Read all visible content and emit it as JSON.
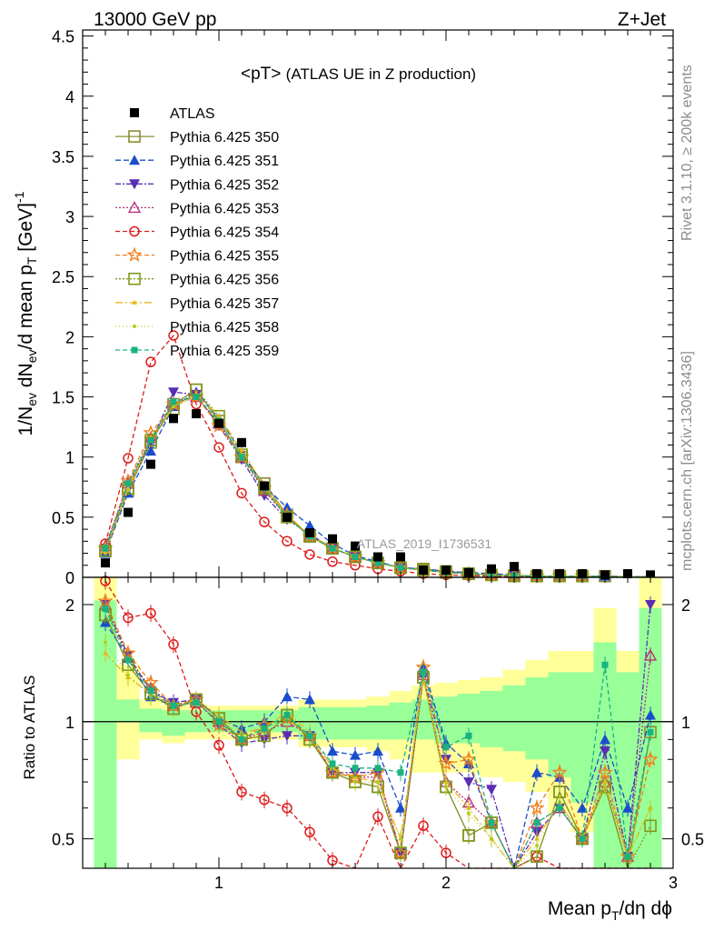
{
  "header": {
    "left": "13000 GeV pp",
    "right": "Z+Jet"
  },
  "side": {
    "rivet": "Rivet 3.1.10, ≥ 200k events",
    "mcplots": "mcplots.cern.ch [arXiv:1306.3436]"
  },
  "chart_data": {
    "type": "line",
    "title": "<pT> (ATLAS UE in Z production)",
    "title_main": "<pT>",
    "title_sub": "(ATLAS UE in Z production)",
    "watermark": "ATLAS_2019_I1736531",
    "xlabel": "Mean p_T/dη dφ",
    "ylabel_main": "1/N_ev dN_ev/d mean p_T [GeV]^-1",
    "ylabel_ratio": "Ratio to ATLAS",
    "xlim": [
      0.4,
      3.0
    ],
    "ylim_main": [
      0,
      4.55
    ],
    "ylim_ratio": [
      0.42,
      2.35
    ],
    "grid": false,
    "legend_position": "top-left",
    "x_ticks": [
      "1",
      "2",
      "3"
    ],
    "y_ticks_main": [
      "0",
      "0.5",
      "1",
      "1.5",
      "2",
      "2.5",
      "3",
      "3.5",
      "4",
      "4.5"
    ],
    "y_ticks_ratio": [
      "0.5",
      "1",
      "2"
    ],
    "x": [
      0.5,
      0.6,
      0.7,
      0.8,
      0.9,
      1.0,
      1.1,
      1.2,
      1.3,
      1.4,
      1.5,
      1.6,
      1.7,
      1.8,
      1.9,
      2.0,
      2.1,
      2.2,
      2.3,
      2.4,
      2.5,
      2.6,
      2.7,
      2.8,
      2.9
    ],
    "data": {
      "name": "ATLAS",
      "values": [
        0.12,
        0.54,
        0.94,
        1.32,
        1.36,
        1.28,
        1.12,
        0.76,
        0.5,
        0.37,
        0.32,
        0.26,
        0.17,
        0.17,
        0.06,
        0.06,
        0.04,
        0.07,
        0.09,
        0.03,
        0.03,
        0.03,
        0.02,
        0.03,
        0.02
      ]
    },
    "series": [
      {
        "name": "Pythia 6.425 350",
        "color": "#8c8c33",
        "dash": "",
        "marker": "square-open",
        "values": [
          0.22,
          0.72,
          1.12,
          1.44,
          1.56,
          1.3,
          1.0,
          0.78,
          0.52,
          0.34,
          0.24,
          0.17,
          0.12,
          0.08,
          0.07,
          0.05,
          0.03,
          0.02,
          0.01,
          0.01,
          0.01,
          0.01,
          0.01,
          0.005,
          0.005
        ]
      },
      {
        "name": "Pythia 6.425 351",
        "color": "#1a4dcc",
        "dash": "6,3",
        "marker": "triangle-up",
        "values": [
          0.2,
          0.7,
          1.05,
          1.42,
          1.54,
          1.32,
          1.04,
          0.76,
          0.58,
          0.43,
          0.28,
          0.18,
          0.13,
          0.08,
          0.07,
          0.05,
          0.04,
          0.03,
          0.02,
          0.01,
          0.01,
          0.01,
          0.01,
          0.005,
          0.005
        ]
      },
      {
        "name": "Pythia 6.425 352",
        "color": "#5a2db3",
        "dash": "6,2,2,2",
        "marker": "triangle-down",
        "values": [
          0.24,
          0.76,
          1.12,
          1.54,
          1.52,
          1.26,
          0.98,
          0.68,
          0.48,
          0.36,
          0.24,
          0.17,
          0.12,
          0.08,
          0.06,
          0.05,
          0.03,
          0.02,
          0.015,
          0.01,
          0.01,
          0.01,
          0.005,
          0.005,
          0.005
        ]
      },
      {
        "name": "Pythia 6.425 353",
        "color": "#b3337a",
        "dash": "2,2",
        "marker": "triangle-up-open",
        "values": [
          0.26,
          0.78,
          1.16,
          1.44,
          1.5,
          1.28,
          1.0,
          0.72,
          0.5,
          0.34,
          0.24,
          0.17,
          0.12,
          0.08,
          0.06,
          0.04,
          0.03,
          0.02,
          0.015,
          0.01,
          0.01,
          0.01,
          0.005,
          0.005,
          0.005
        ]
      },
      {
        "name": "Pythia 6.425 354",
        "color": "#dd1a1a",
        "dash": "5,3",
        "marker": "circle-open",
        "values": [
          0.28,
          0.99,
          1.79,
          2.01,
          1.44,
          1.08,
          0.7,
          0.46,
          0.3,
          0.19,
          0.13,
          0.1,
          0.07,
          0.05,
          0.03,
          0.02,
          0.015,
          0.01,
          0.005,
          0.005,
          0.005,
          0.005,
          0.005,
          0.005,
          0.005
        ]
      },
      {
        "name": "Pythia 6.425 355",
        "color": "#f07f1a",
        "dash": "5,3",
        "marker": "star-open",
        "values": [
          0.24,
          0.8,
          1.2,
          1.44,
          1.5,
          1.26,
          1.0,
          0.74,
          0.52,
          0.34,
          0.24,
          0.17,
          0.12,
          0.08,
          0.06,
          0.04,
          0.03,
          0.02,
          0.015,
          0.01,
          0.01,
          0.01,
          0.005,
          0.005,
          0.005
        ]
      },
      {
        "name": "Pythia 6.425 356",
        "color": "#7f991a",
        "dash": "2,2",
        "marker": "square-open",
        "values": [
          0.22,
          0.74,
          1.14,
          1.4,
          1.56,
          1.34,
          1.02,
          0.74,
          0.5,
          0.34,
          0.24,
          0.17,
          0.12,
          0.08,
          0.06,
          0.04,
          0.03,
          0.02,
          0.015,
          0.01,
          0.01,
          0.01,
          0.005,
          0.005,
          0.005
        ]
      },
      {
        "name": "Pythia 6.425 357",
        "color": "#e6b81a",
        "dash": "8,3,2,3",
        "marker": "tri-small",
        "values": [
          0.22,
          0.74,
          1.16,
          1.42,
          1.52,
          1.34,
          1.06,
          0.76,
          0.52,
          0.35,
          0.25,
          0.17,
          0.12,
          0.08,
          0.06,
          0.04,
          0.03,
          0.02,
          0.015,
          0.01,
          0.01,
          0.01,
          0.005,
          0.005,
          0.005
        ]
      },
      {
        "name": "Pythia 6.425 358",
        "color": "#b3cc1a",
        "dash": "1,3",
        "marker": "dot",
        "values": [
          0.2,
          0.72,
          1.14,
          1.42,
          1.5,
          1.32,
          1.02,
          0.74,
          0.5,
          0.34,
          0.24,
          0.17,
          0.12,
          0.08,
          0.06,
          0.04,
          0.03,
          0.02,
          0.015,
          0.01,
          0.01,
          0.01,
          0.005,
          0.005,
          0.005
        ]
      },
      {
        "name": "Pythia 6.425 359",
        "color": "#1ab380",
        "dash": "5,3",
        "marker": "square-small",
        "values": [
          0.24,
          0.78,
          1.14,
          1.46,
          1.5,
          1.3,
          1.0,
          0.74,
          0.5,
          0.34,
          0.24,
          0.17,
          0.12,
          0.08,
          0.06,
          0.04,
          0.03,
          0.02,
          0.015,
          0.01,
          0.01,
          0.01,
          0.005,
          0.005,
          0.005
        ]
      }
    ],
    "ratio_series": [
      {
        "name": "Pythia 6.425 350",
        "values": [
          1.88,
          1.4,
          1.18,
          1.08,
          1.14,
          1.02,
          0.9,
          0.92,
          1.04,
          0.9,
          0.74,
          0.7,
          0.68,
          0.46,
          1.3,
          0.68,
          0.51,
          0.55,
          0.3,
          0.45,
          0.66,
          0.5,
          0.68,
          0.4,
          0.94
        ]
      },
      {
        "name": "Pythia 6.425 351",
        "values": [
          1.8,
          1.46,
          1.16,
          1.1,
          1.14,
          1.02,
          0.96,
          1.0,
          1.16,
          1.14,
          0.84,
          0.82,
          0.84,
          0.6,
          1.38,
          0.88,
          0.78,
          0.55,
          0.32,
          0.74,
          0.72,
          0.6,
          0.9,
          0.6,
          1.04
        ]
      },
      {
        "name": "Pythia 6.425 352",
        "values": [
          2.0,
          1.48,
          1.2,
          1.12,
          1.14,
          0.98,
          0.88,
          0.9,
          0.92,
          0.92,
          0.74,
          0.74,
          0.74,
          0.46,
          1.3,
          0.8,
          0.7,
          0.67,
          0.3,
          0.52,
          0.6,
          0.5,
          0.84,
          0.45,
          2.0
        ]
      },
      {
        "name": "Pythia 6.425 353",
        "values": [
          2.0,
          1.46,
          1.22,
          1.1,
          1.12,
          1.0,
          0.9,
          0.94,
          1.0,
          0.92,
          0.74,
          0.72,
          0.72,
          0.46,
          1.32,
          0.7,
          0.62,
          0.55,
          0.3,
          0.55,
          0.6,
          0.5,
          0.7,
          0.45,
          1.48
        ]
      },
      {
        "name": "Pythia 6.425 354",
        "values": [
          2.3,
          1.85,
          1.9,
          1.58,
          1.06,
          0.87,
          0.66,
          0.63,
          0.6,
          0.52,
          0.44,
          0.42,
          0.57,
          0.3,
          0.54,
          0.46,
          0.4,
          0.35,
          0.32,
          0.45,
          0.36,
          0.4,
          0.38,
          0.4,
          0.36
        ]
      },
      {
        "name": "Pythia 6.425 355",
        "values": [
          2.04,
          1.5,
          1.26,
          1.1,
          1.14,
          0.98,
          0.9,
          0.98,
          1.02,
          0.92,
          0.74,
          0.72,
          0.74,
          0.46,
          1.38,
          0.78,
          0.8,
          0.55,
          0.3,
          0.6,
          0.74,
          0.5,
          0.74,
          0.45,
          0.8
        ]
      },
      {
        "name": "Pythia 6.425 356",
        "values": [
          1.88,
          1.4,
          1.18,
          1.08,
          1.14,
          1.02,
          0.9,
          0.92,
          1.04,
          0.9,
          0.74,
          0.7,
          0.68,
          0.46,
          1.3,
          0.68,
          0.51,
          0.55,
          0.3,
          0.45,
          0.66,
          0.5,
          0.68,
          0.4,
          0.54
        ]
      },
      {
        "name": "Pythia 6.425 357",
        "values": [
          1.5,
          1.3,
          1.18,
          1.1,
          1.14,
          1.04,
          0.94,
          0.96,
          1.06,
          0.94,
          0.76,
          0.72,
          0.7,
          0.5,
          1.3,
          0.7,
          0.6,
          0.5,
          0.32,
          0.5,
          0.62,
          0.5,
          0.7,
          0.45,
          0.6
        ]
      },
      {
        "name": "Pythia 6.425 358",
        "values": [
          1.6,
          1.32,
          1.16,
          1.08,
          1.12,
          1.02,
          0.92,
          0.94,
          1.02,
          0.92,
          0.76,
          0.7,
          0.7,
          0.5,
          1.3,
          0.68,
          0.58,
          0.5,
          0.32,
          0.48,
          0.62,
          0.5,
          0.68,
          0.45,
          0.6
        ]
      },
      {
        "name": "Pythia 6.425 359",
        "values": [
          1.95,
          1.44,
          1.2,
          1.1,
          1.12,
          1.0,
          0.9,
          0.96,
          1.04,
          0.92,
          0.78,
          0.76,
          0.76,
          0.74,
          1.34,
          0.86,
          0.92,
          0.55,
          0.32,
          0.55,
          0.6,
          0.5,
          1.4,
          0.45,
          0.94
        ]
      }
    ],
    "uncertainty_band": {
      "yellow_lo": [
        0.42,
        0.8,
        0.9,
        0.88,
        0.9,
        0.9,
        0.9,
        0.9,
        0.9,
        0.86,
        0.86,
        0.86,
        0.84,
        0.8,
        0.74,
        0.74,
        0.74,
        0.72,
        0.7,
        0.66,
        0.58,
        0.52,
        0.42,
        0.42,
        0.42
      ],
      "yellow_hi": [
        2.35,
        1.4,
        1.14,
        1.1,
        1.1,
        1.1,
        1.1,
        1.1,
        1.1,
        1.14,
        1.14,
        1.14,
        1.16,
        1.2,
        1.24,
        1.26,
        1.28,
        1.3,
        1.36,
        1.44,
        1.52,
        1.52,
        1.96,
        1.52,
        2.35
      ],
      "green_lo": [
        0.42,
        1.0,
        0.94,
        0.92,
        0.94,
        0.94,
        0.94,
        0.94,
        0.94,
        0.9,
        0.9,
        0.9,
        0.9,
        0.9,
        0.9,
        0.88,
        0.88,
        0.86,
        0.84,
        0.8,
        0.72,
        0.62,
        0.42,
        0.42,
        0.42
      ],
      "green_hi": [
        2.05,
        1.14,
        1.08,
        1.07,
        1.07,
        1.07,
        1.07,
        1.07,
        1.07,
        1.09,
        1.09,
        1.09,
        1.1,
        1.12,
        1.14,
        1.16,
        1.18,
        1.2,
        1.24,
        1.3,
        1.34,
        1.34,
        1.6,
        1.34,
        1.96
      ]
    }
  }
}
